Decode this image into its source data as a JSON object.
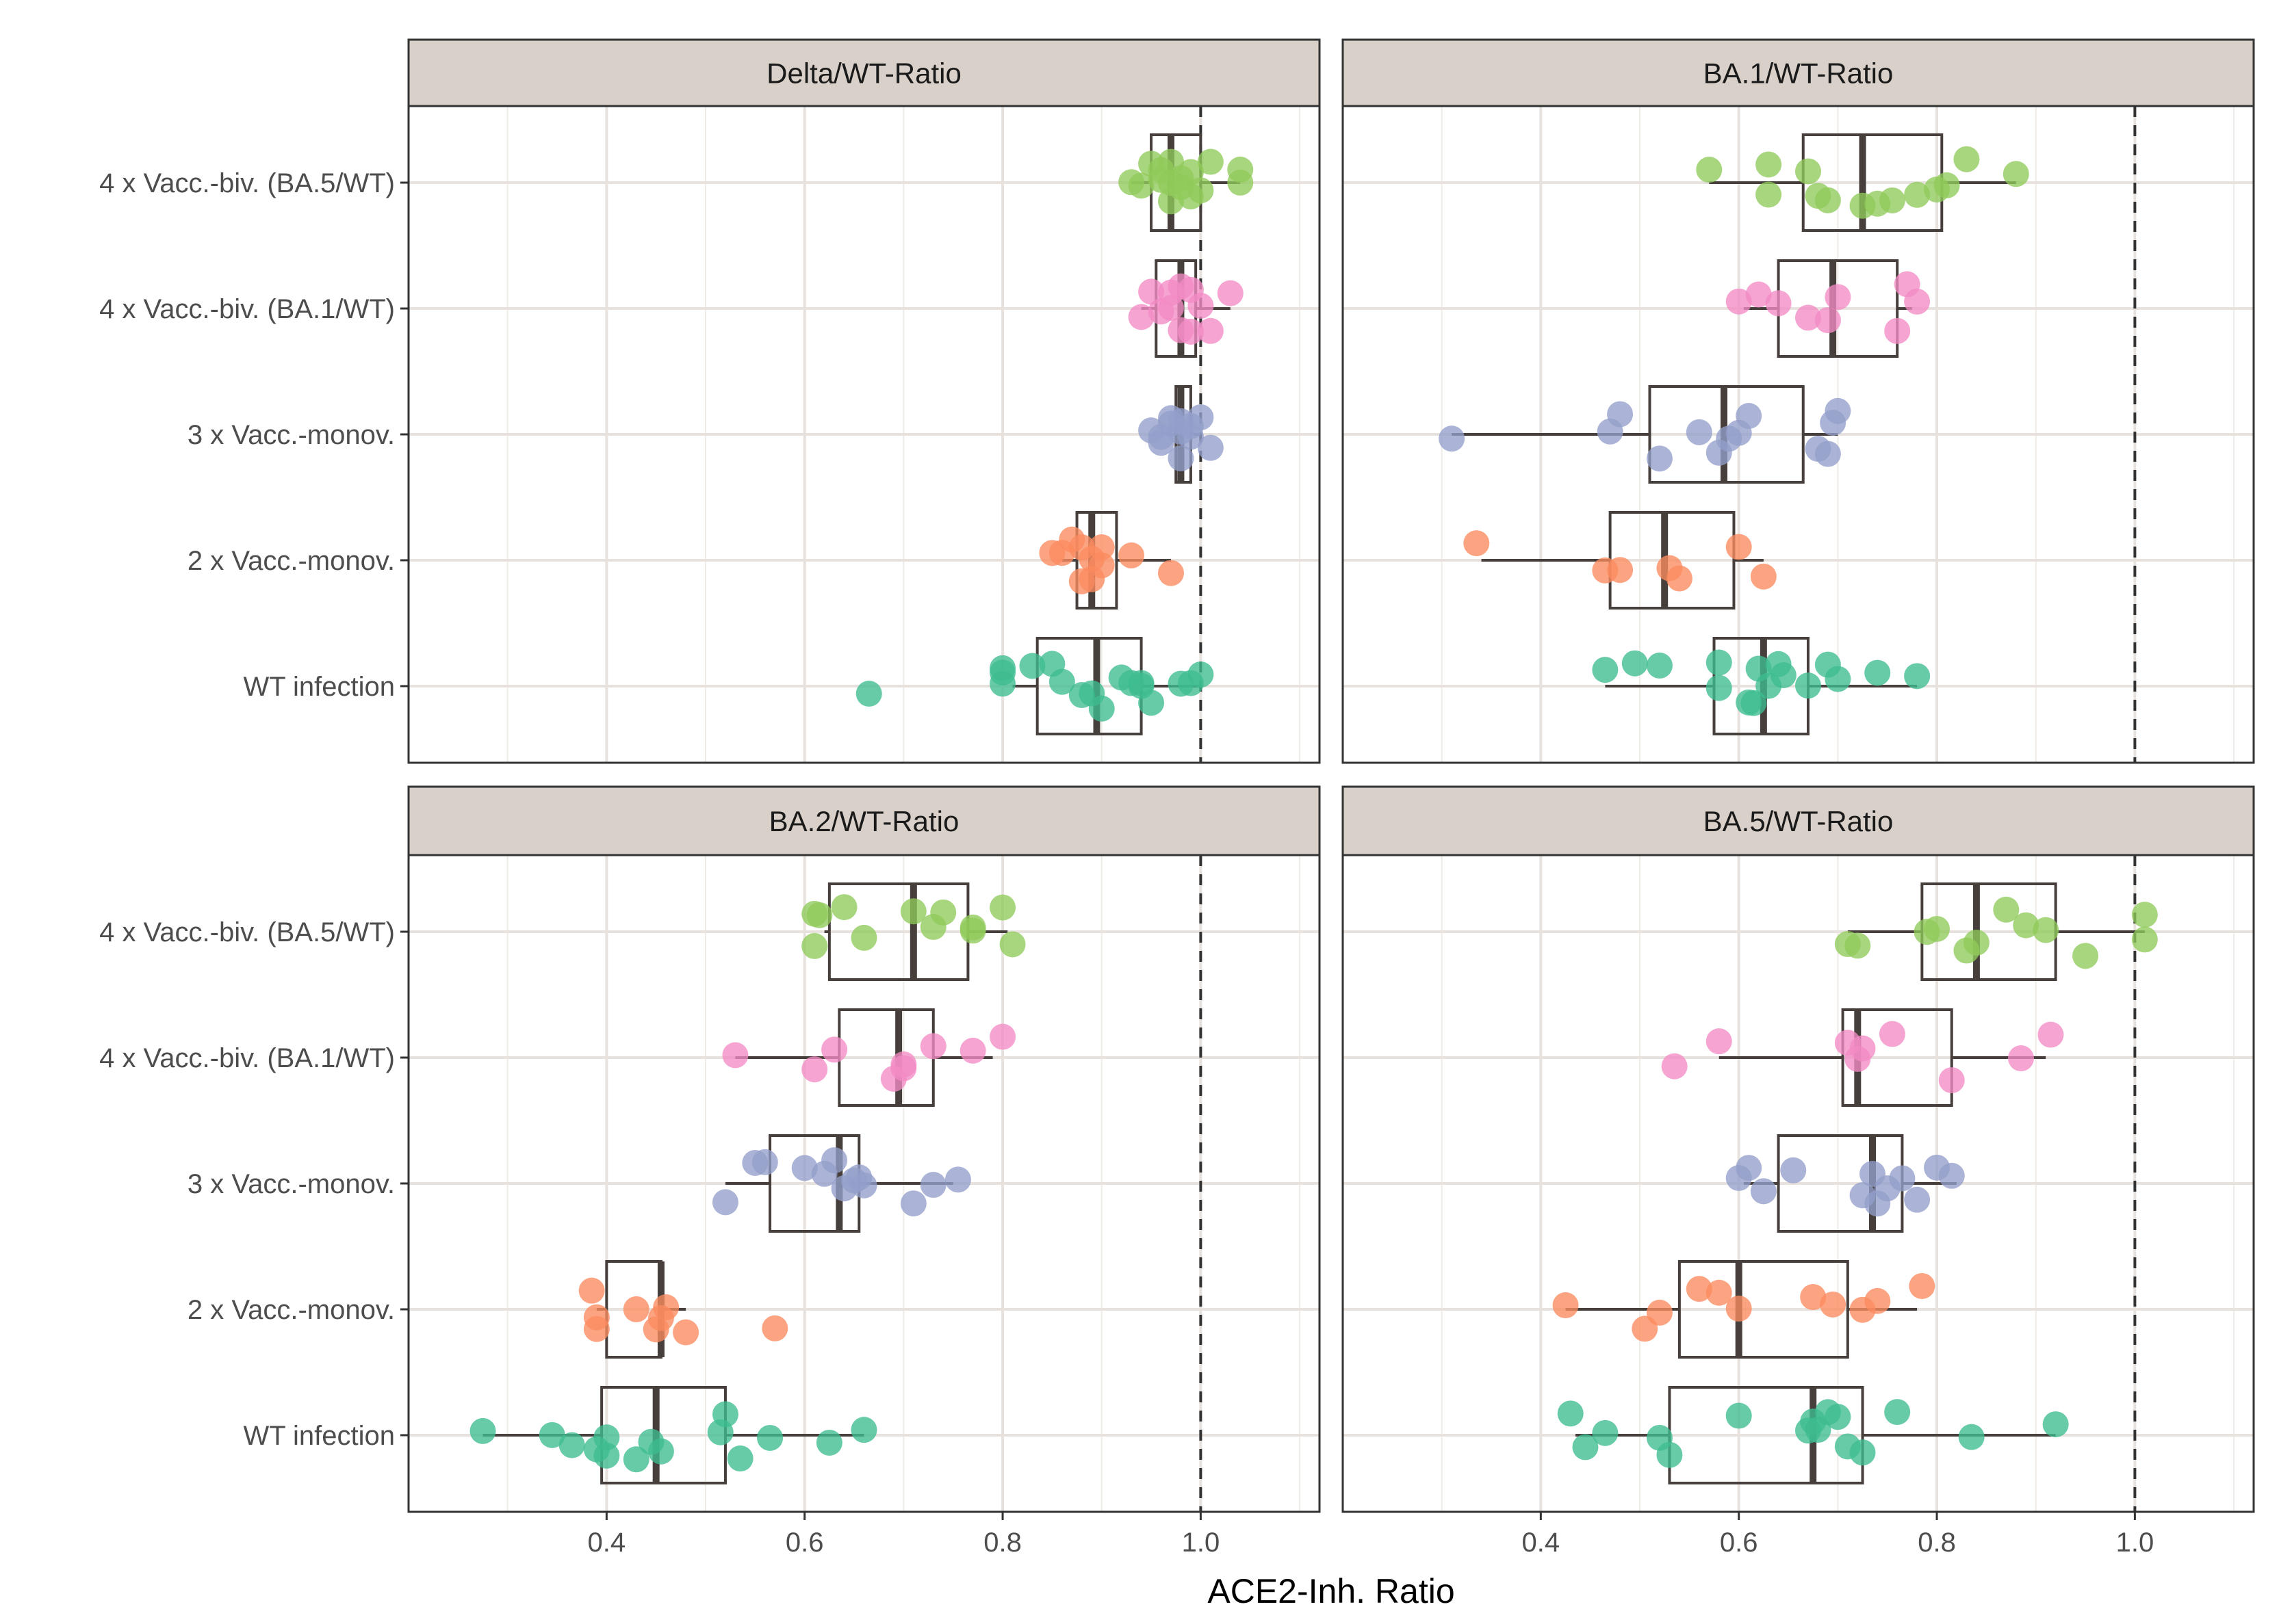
{
  "chart_data": {
    "type": "boxplot-jitter",
    "xlabel": "ACE2-Inh. Ratio",
    "xlim": [
      0.2,
      1.12
    ],
    "x_ticks": [
      0.4,
      0.6,
      0.8,
      1.0
    ],
    "x_tick_labels": [
      "0.4",
      "0.6",
      "0.8",
      "1.0"
    ],
    "reference_line": 1.0,
    "groups": [
      "4 x Vacc.-biv. (BA.5/WT)",
      "4 x Vacc.-biv. (BA.1/WT)",
      "3 x Vacc.-monov.",
      "2 x Vacc.-monov.",
      "WT infection"
    ],
    "colors": {
      "4 x Vacc.-biv. (BA.5/WT)": "#8fca5a",
      "4 x Vacc.-biv. (BA.1/WT)": "#f38bc5",
      "3 x Vacc.-monov.": "#949fca",
      "2 x Vacc.-monov.": "#fb8a5f",
      "WT infection": "#3dbc90"
    },
    "panels": [
      {
        "title": "Delta/WT-Ratio",
        "series": [
          {
            "group": "4 x Vacc.-biv. (BA.5/WT)",
            "box": {
              "min": 0.93,
              "q1": 0.95,
              "median": 0.97,
              "q3": 1.0,
              "max": 1.04
            },
            "points": [
              0.93,
              0.94,
              0.95,
              0.96,
              0.96,
              0.97,
              0.97,
              0.97,
              0.98,
              0.98,
              0.99,
              0.99,
              1.0,
              1.01,
              1.04,
              1.04
            ]
          },
          {
            "group": "4 x Vacc.-biv. (BA.1/WT)",
            "box": {
              "min": 0.94,
              "q1": 0.955,
              "median": 0.98,
              "q3": 0.995,
              "max": 1.03
            },
            "points": [
              0.94,
              0.95,
              0.96,
              0.97,
              0.97,
              0.98,
              0.98,
              0.99,
              0.99,
              1.0,
              1.01,
              1.03
            ]
          },
          {
            "group": "3 x Vacc.-monov.",
            "box": {
              "min": 0.965,
              "q1": 0.975,
              "median": 0.98,
              "q3": 0.99,
              "max": 1.0
            },
            "points": [
              0.95,
              0.96,
              0.96,
              0.97,
              0.97,
              0.98,
              0.98,
              0.98,
              0.99,
              0.99,
              1.0,
              1.01
            ]
          },
          {
            "group": "2 x Vacc.-monov.",
            "box": {
              "min": 0.86,
              "q1": 0.875,
              "median": 0.89,
              "q3": 0.915,
              "max": 0.97
            },
            "points": [
              0.85,
              0.86,
              0.87,
              0.88,
              0.88,
              0.89,
              0.89,
              0.9,
              0.9,
              0.93,
              0.97
            ]
          },
          {
            "group": "WT infection",
            "box": {
              "min": 0.81,
              "q1": 0.835,
              "median": 0.895,
              "q3": 0.94,
              "max": 1.0
            },
            "points": [
              0.665,
              0.8,
              0.8,
              0.8,
              0.83,
              0.85,
              0.86,
              0.88,
              0.89,
              0.9,
              0.92,
              0.93,
              0.94,
              0.94,
              0.95,
              0.98,
              0.99,
              1.0
            ]
          }
        ]
      },
      {
        "title": "BA.1/WT-Ratio",
        "series": [
          {
            "group": "4 x Vacc.-biv. (BA.5/WT)",
            "box": {
              "min": 0.57,
              "q1": 0.665,
              "median": 0.725,
              "q3": 0.805,
              "max": 0.88
            },
            "points": [
              0.57,
              0.63,
              0.63,
              0.67,
              0.68,
              0.69,
              0.725,
              0.74,
              0.755,
              0.78,
              0.8,
              0.81,
              0.83,
              0.88
            ]
          },
          {
            "group": "4 x Vacc.-biv. (BA.1/WT)",
            "box": {
              "min": 0.605,
              "q1": 0.64,
              "median": 0.695,
              "q3": 0.76,
              "max": 0.775
            },
            "points": [
              0.6,
              0.62,
              0.64,
              0.67,
              0.69,
              0.7,
              0.76,
              0.77,
              0.78
            ]
          },
          {
            "group": "3 x Vacc.-monov.",
            "box": {
              "min": 0.31,
              "q1": 0.51,
              "median": 0.585,
              "q3": 0.665,
              "max": 0.7
            },
            "points": [
              0.31,
              0.47,
              0.48,
              0.52,
              0.56,
              0.58,
              0.59,
              0.6,
              0.61,
              0.68,
              0.69,
              0.695,
              0.7
            ]
          },
          {
            "group": "2 x Vacc.-monov.",
            "box": {
              "min": 0.34,
              "q1": 0.47,
              "median": 0.525,
              "q3": 0.595,
              "max": 0.625
            },
            "points": [
              0.335,
              0.465,
              0.48,
              0.53,
              0.54,
              0.6,
              0.625
            ]
          },
          {
            "group": "WT infection",
            "box": {
              "min": 0.465,
              "q1": 0.575,
              "median": 0.625,
              "q3": 0.67,
              "max": 0.78
            },
            "points": [
              0.465,
              0.495,
              0.52,
              0.58,
              0.58,
              0.61,
              0.615,
              0.62,
              0.63,
              0.64,
              0.645,
              0.67,
              0.69,
              0.7,
              0.74,
              0.78
            ]
          }
        ]
      },
      {
        "title": "BA.2/WT-Ratio",
        "series": [
          {
            "group": "4 x Vacc.-biv. (BA.5/WT)",
            "box": {
              "min": 0.62,
              "q1": 0.625,
              "median": 0.71,
              "q3": 0.765,
              "max": 0.805
            },
            "points": [
              0.61,
              0.61,
              0.615,
              0.64,
              0.66,
              0.71,
              0.73,
              0.74,
              0.77,
              0.77,
              0.8,
              0.81
            ]
          },
          {
            "group": "4 x Vacc.-biv. (BA.1/WT)",
            "box": {
              "min": 0.53,
              "q1": 0.635,
              "median": 0.695,
              "q3": 0.73,
              "max": 0.79
            },
            "points": [
              0.53,
              0.61,
              0.63,
              0.69,
              0.7,
              0.7,
              0.73,
              0.77,
              0.8
            ]
          },
          {
            "group": "3 x Vacc.-monov.",
            "box": {
              "min": 0.52,
              "q1": 0.565,
              "median": 0.635,
              "q3": 0.655,
              "max": 0.75
            },
            "points": [
              0.52,
              0.55,
              0.56,
              0.6,
              0.62,
              0.63,
              0.64,
              0.65,
              0.655,
              0.66,
              0.71,
              0.73,
              0.755
            ]
          },
          {
            "group": "2 x Vacc.-monov.",
            "box": {
              "min": 0.39,
              "q1": 0.4,
              "median": 0.455,
              "q3": 0.455,
              "max": 0.48
            },
            "points": [
              0.385,
              0.39,
              0.39,
              0.43,
              0.45,
              0.455,
              0.46,
              0.48,
              0.57
            ]
          },
          {
            "group": "WT infection",
            "box": {
              "min": 0.275,
              "q1": 0.395,
              "median": 0.45,
              "q3": 0.52,
              "max": 0.66
            },
            "points": [
              0.275,
              0.345,
              0.365,
              0.39,
              0.4,
              0.4,
              0.43,
              0.445,
              0.455,
              0.515,
              0.52,
              0.535,
              0.565,
              0.625,
              0.66
            ]
          }
        ]
      },
      {
        "title": "BA.5/WT-Ratio",
        "series": [
          {
            "group": "4 x Vacc.-biv. (BA.5/WT)",
            "box": {
              "min": 0.71,
              "q1": 0.785,
              "median": 0.84,
              "q3": 0.92,
              "max": 1.01
            },
            "points": [
              0.71,
              0.72,
              0.79,
              0.8,
              0.83,
              0.84,
              0.87,
              0.89,
              0.91,
              0.95,
              1.01,
              1.01
            ]
          },
          {
            "group": "4 x Vacc.-biv. (BA.1/WT)",
            "box": {
              "min": 0.58,
              "q1": 0.705,
              "median": 0.72,
              "q3": 0.815,
              "max": 0.91
            },
            "points": [
              0.535,
              0.58,
              0.71,
              0.72,
              0.725,
              0.755,
              0.815,
              0.885,
              0.915
            ]
          },
          {
            "group": "3 x Vacc.-monov.",
            "box": {
              "min": 0.605,
              "q1": 0.64,
              "median": 0.735,
              "q3": 0.765,
              "max": 0.82
            },
            "points": [
              0.6,
              0.61,
              0.625,
              0.655,
              0.725,
              0.735,
              0.74,
              0.75,
              0.765,
              0.78,
              0.8,
              0.815
            ]
          },
          {
            "group": "2 x Vacc.-monov.",
            "box": {
              "min": 0.425,
              "q1": 0.54,
              "median": 0.6,
              "q3": 0.71,
              "max": 0.78
            },
            "points": [
              0.425,
              0.505,
              0.52,
              0.56,
              0.58,
              0.6,
              0.675,
              0.695,
              0.725,
              0.74,
              0.785
            ]
          },
          {
            "group": "WT infection",
            "box": {
              "min": 0.435,
              "q1": 0.53,
              "median": 0.675,
              "q3": 0.725,
              "max": 0.92
            },
            "points": [
              0.43,
              0.445,
              0.465,
              0.52,
              0.53,
              0.6,
              0.67,
              0.675,
              0.68,
              0.69,
              0.7,
              0.71,
              0.725,
              0.76,
              0.835,
              0.92
            ]
          }
        ]
      }
    ]
  }
}
